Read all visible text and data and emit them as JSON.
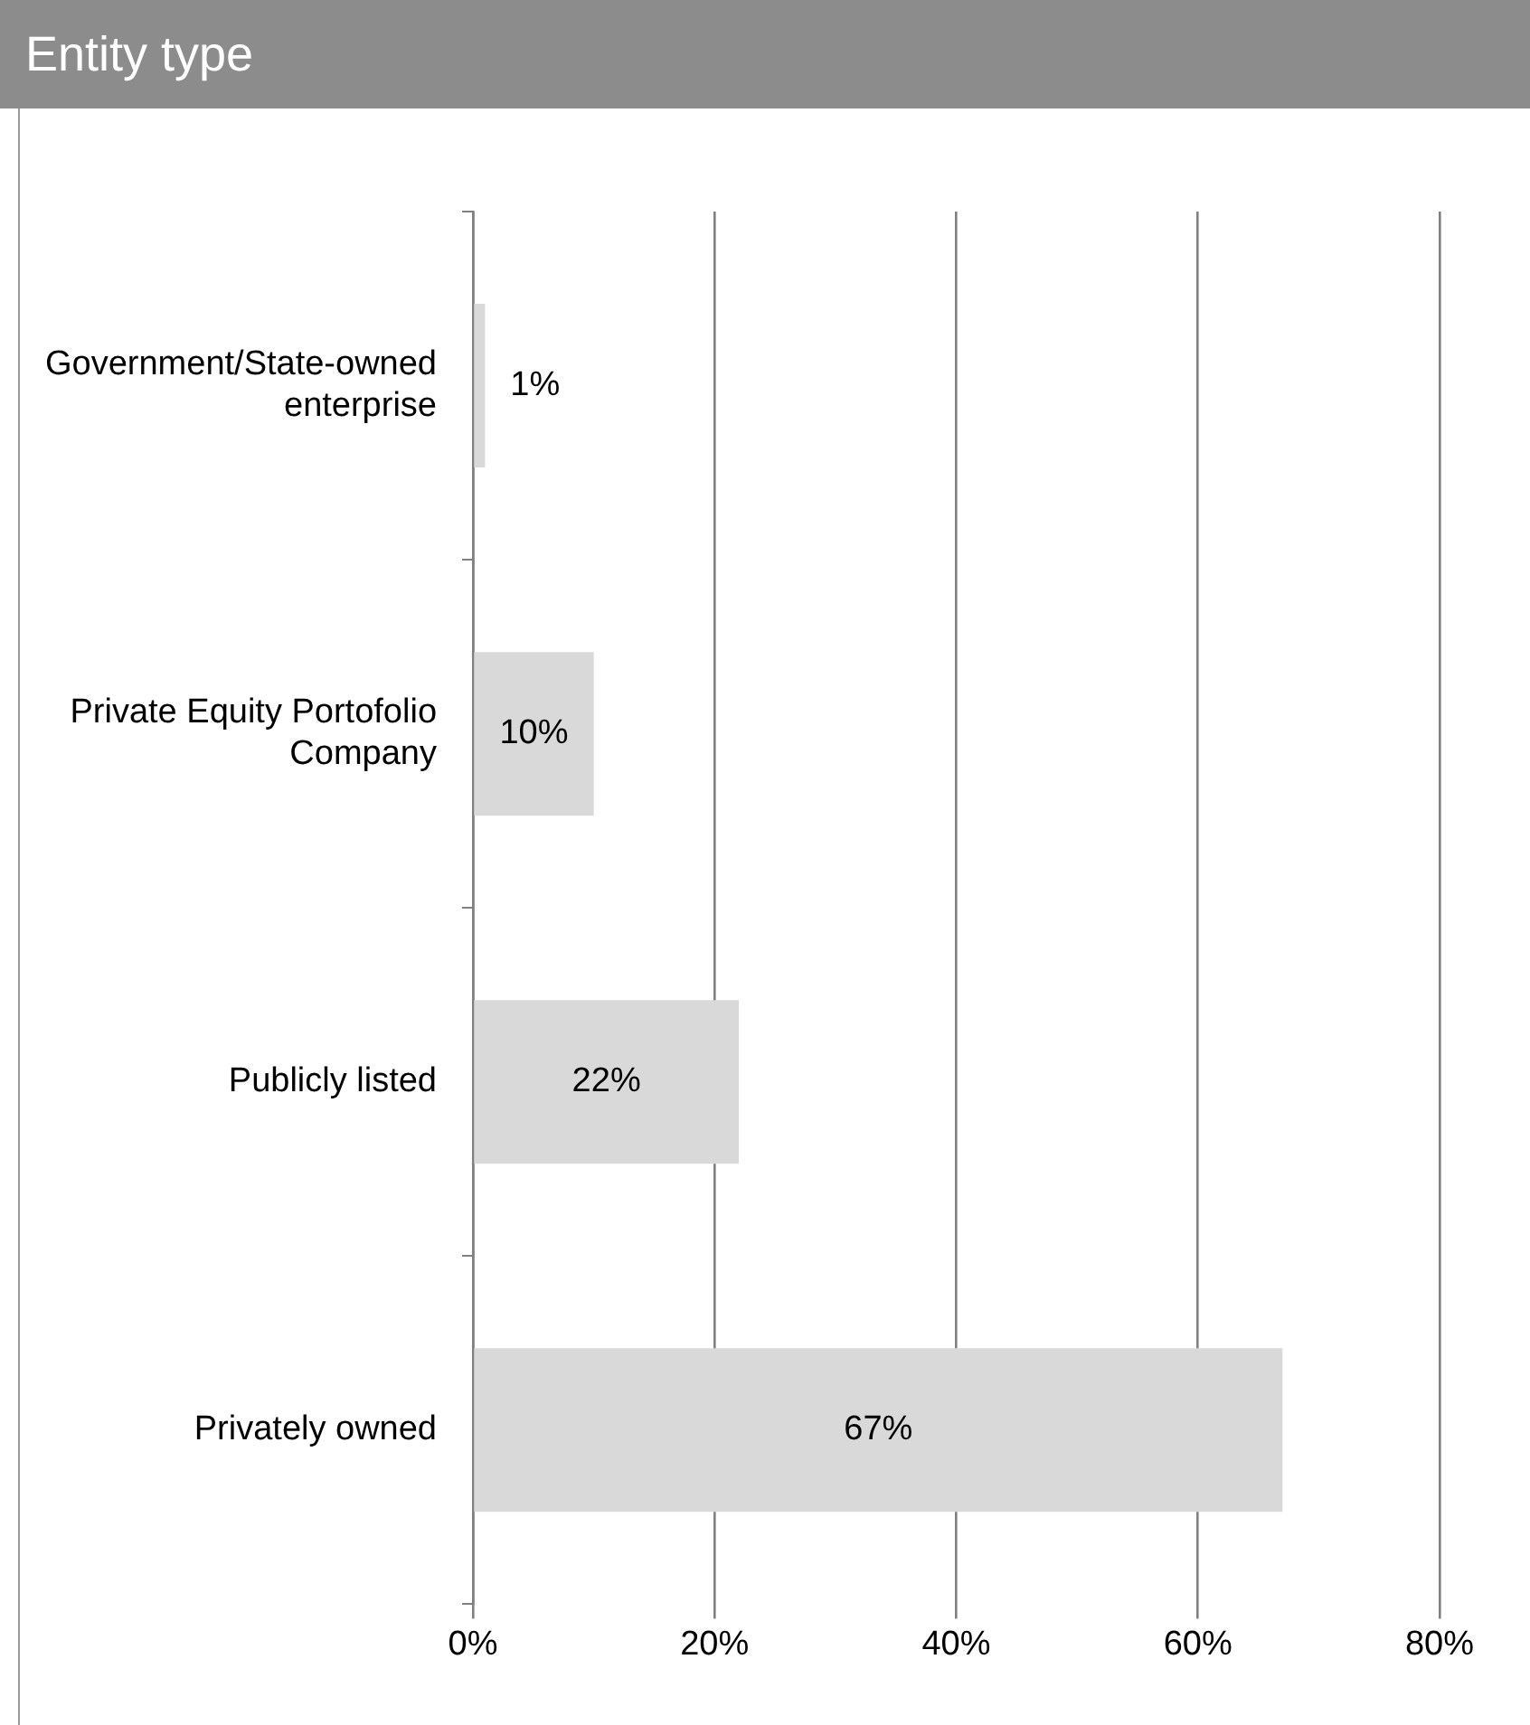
{
  "chart_data": {
    "type": "bar",
    "orientation": "horizontal",
    "title": "Entity type",
    "categories": [
      "Government/State-owned enterprise",
      "Private Equity Portofolio Company",
      "Publicly listed",
      "Privately owned"
    ],
    "values": [
      1,
      10,
      22,
      67
    ],
    "value_labels": [
      "1%",
      "10%",
      "22%",
      "67%"
    ],
    "color": "#d9d9d9",
    "xlim": [
      0,
      80
    ],
    "xticks": [
      {
        "value": 0,
        "label": "0%"
      },
      {
        "value": 20,
        "label": "20%"
      },
      {
        "value": 40,
        "label": "40%"
      },
      {
        "value": 60,
        "label": "60%"
      },
      {
        "value": 80,
        "label": "80%"
      }
    ],
    "grid": "x",
    "legend": false
  }
}
